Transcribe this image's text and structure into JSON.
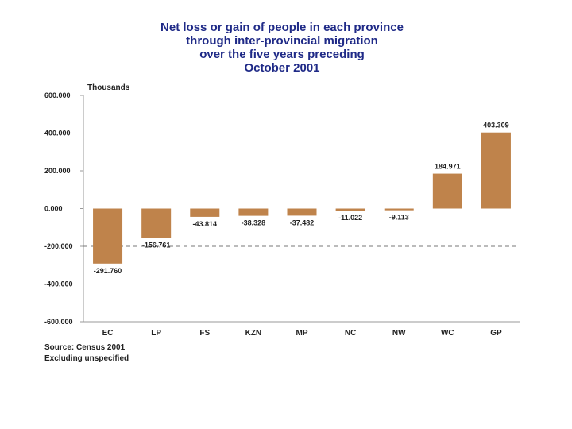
{
  "chart_data": {
    "type": "bar",
    "title_lines": [
      "Net loss or gain of people in each province",
      "through inter-provincial migration",
      "over the five years preceding",
      "October 2001"
    ],
    "ylabel": "Thousands",
    "categories": [
      "EC",
      "LP",
      "FS",
      "KZN",
      "MP",
      "NC",
      "NW",
      "WC",
      "GP"
    ],
    "values": [
      -291.76,
      -156.761,
      -43.814,
      -38.328,
      -37.482,
      -11.022,
      -9.113,
      184.971,
      403.309
    ],
    "value_labels": [
      "-291.760",
      "-156.761",
      "-43.814",
      "-38.328",
      "-37.482",
      "-11.022",
      "-9.113",
      "184.971",
      "403.309"
    ],
    "ylim": [
      -600,
      600
    ],
    "yticks": [
      600,
      400,
      200,
      0,
      -200,
      -400,
      -600
    ],
    "ytick_labels": [
      "600.000",
      "400.000",
      "200.000",
      "0.000",
      "-200.000",
      "-400.000",
      "-600.000"
    ],
    "reference_line": -200,
    "bar_color": "#bf834b",
    "notes": [
      "Source: Census 2001",
      "Excluding unspecified"
    ]
  }
}
